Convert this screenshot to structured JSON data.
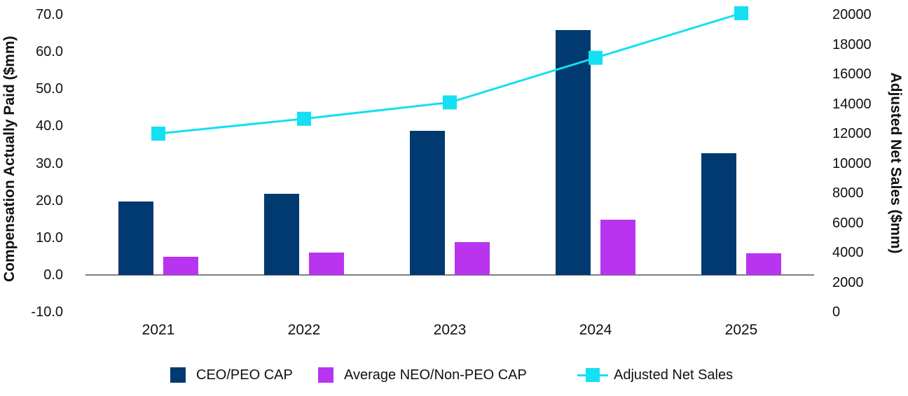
{
  "chart_data": {
    "type": "combo-bar-line",
    "title": "",
    "categories": [
      "2021",
      "2022",
      "2023",
      "2024",
      "2025"
    ],
    "series": [
      {
        "name": "CEO/PEO CAP",
        "type": "bar",
        "axis": "left",
        "color": "#003A70",
        "values": [
          19.8,
          21.8,
          38.7,
          65.8,
          32.8
        ]
      },
      {
        "name": "Average NEO/Non-PEO CAP",
        "type": "bar",
        "axis": "left",
        "color": "#B834F0",
        "values": [
          4.8,
          6.0,
          8.9,
          14.9,
          5.9
        ]
      },
      {
        "name": "Adjusted Net Sales",
        "type": "line",
        "axis": "right",
        "color": "#15DFF2",
        "values": [
          12000,
          13000,
          14100,
          17100,
          20100
        ]
      }
    ],
    "left_axis": {
      "label": "Compensation Actually Paid ($mm)",
      "ticks": [
        "70.0",
        "60.0",
        "50.0",
        "40.0",
        "30.0",
        "20.0",
        "10.0",
        "0.0",
        "-10.0"
      ],
      "range": [
        -10,
        70
      ]
    },
    "right_axis": {
      "label": "Adjusted Net Sales ($mm)",
      "ticks": [
        "20000",
        "18000",
        "16000",
        "14000",
        "12000",
        "10000",
        "8000",
        "6000",
        "4000",
        "2000",
        "0"
      ],
      "range": [
        0,
        20000
      ]
    },
    "legend": {
      "position": "bottom",
      "entries": [
        "CEO/PEO CAP",
        "Average NEO/Non-PEO CAP",
        "Adjusted Net Sales"
      ]
    },
    "grid": false,
    "colors": {
      "axis_line": "#7F7F7F",
      "text": "#111111",
      "background": "#FFFFFF"
    }
  }
}
